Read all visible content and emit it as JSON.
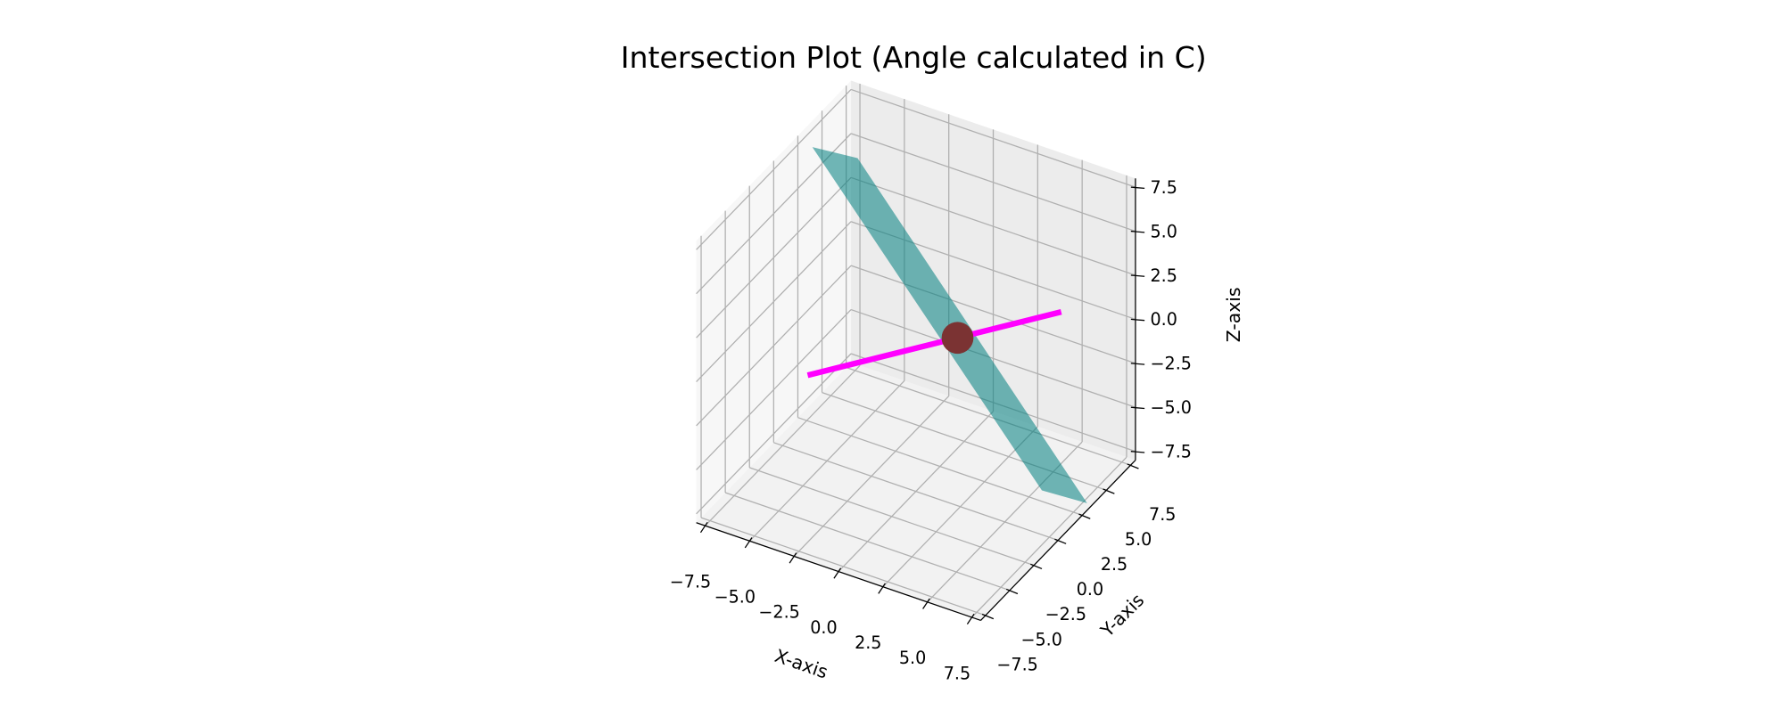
{
  "chart_data": {
    "type": "3d",
    "title": "Intersection Plot (Angle calculated in C)",
    "xlabel": "X-axis",
    "ylabel": "Y-axis",
    "zlabel": "Z-axis",
    "xlim": [
      -8,
      8
    ],
    "ylim": [
      -8,
      8
    ],
    "zlim": [
      -8,
      8
    ],
    "xticks": [
      {
        "value": -7.5,
        "label": "−7.5"
      },
      {
        "value": -5,
        "label": "−5.0"
      },
      {
        "value": -2.5,
        "label": "−2.5"
      },
      {
        "value": 0,
        "label": "0.0"
      },
      2.5,
      {
        "value": 5,
        "label": "5.0"
      },
      7.5
    ],
    "yticks": [
      {
        "value": -7.5,
        "label": "−7.5"
      },
      {
        "value": -5,
        "label": "−5.0"
      },
      {
        "value": -2.5,
        "label": "−2.5"
      },
      {
        "value": 0,
        "label": "0.0"
      },
      2.5,
      {
        "value": 5,
        "label": "5.0"
      },
      7.5
    ],
    "zticks": [
      {
        "value": -7.5,
        "label": "−7.5"
      },
      {
        "value": -5,
        "label": "−5.0"
      },
      {
        "value": -2.5,
        "label": "−2.5"
      },
      {
        "value": 0,
        "label": "0.0"
      },
      2.5,
      {
        "value": 5,
        "label": "5.0"
      },
      7.5
    ],
    "grid": true,
    "plane": {
      "color": "#008080",
      "x": [
        -8,
        -6,
        8,
        6
      ],
      "y": [
        4,
        5,
        3,
        2
      ],
      "z": [
        6.5,
        6,
        -7.6,
        -7
      ]
    },
    "line": {
      "color": "#ff00ff",
      "x": [
        -5,
        6
      ],
      "y": [
        -2,
        4
      ],
      "z": [
        -2,
        2
      ]
    },
    "point": {
      "color": "#7b3333",
      "x": 1.5,
      "y": 1.55,
      "z": 0.36
    }
  }
}
